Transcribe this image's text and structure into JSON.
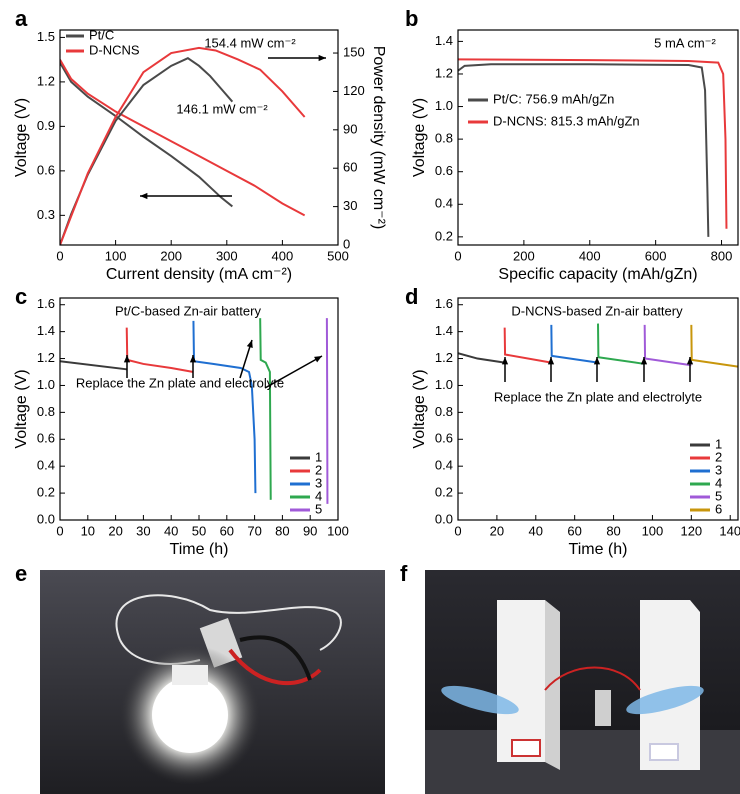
{
  "chart_data": [
    {
      "type": "line",
      "panel_label": "a",
      "xlabel": "Current density (mA cm⁻²)",
      "ylabel": "Voltage (V)",
      "y2label": "Power density (mW cm⁻²)",
      "xlim": [
        0,
        500
      ],
      "xticks": [
        0,
        100,
        200,
        300,
        400,
        500
      ],
      "ylim": [
        0.1,
        1.55
      ],
      "yticks": [
        0.3,
        0.6,
        0.9,
        1.2,
        1.5
      ],
      "y2lim": [
        0,
        168
      ],
      "y2ticks": [
        0,
        30,
        60,
        90,
        120,
        150
      ],
      "legend": "upper left",
      "annotations": [
        {
          "text": "154.4 mW cm⁻²",
          "color": "#e8393b"
        },
        {
          "text": "146.1 mW cm⁻²",
          "color": "#000000"
        }
      ],
      "series": [
        {
          "name": "Pt/C",
          "color": "#4a4a4a",
          "x": [
            0,
            20,
            50,
            100,
            150,
            200,
            250,
            290,
            310
          ],
          "values": [
            1.33,
            1.2,
            1.1,
            0.97,
            0.83,
            0.7,
            0.56,
            0.42,
            0.36
          ]
        },
        {
          "name": "D-NCNS",
          "color": "#e8393b",
          "x": [
            0,
            20,
            50,
            100,
            150,
            200,
            250,
            300,
            350,
            400,
            440
          ],
          "values": [
            1.35,
            1.22,
            1.12,
            1.0,
            0.9,
            0.8,
            0.7,
            0.6,
            0.5,
            0.38,
            0.3
          ]
        },
        {
          "color": "#4a4a4a",
          "axis": "y2",
          "x": [
            0,
            20,
            50,
            100,
            150,
            200,
            230,
            250,
            270,
            290,
            310
          ],
          "values": [
            0,
            24,
            55,
            97,
            125,
            140,
            146,
            140,
            132,
            122,
            112
          ]
        },
        {
          "color": "#e8393b",
          "axis": "y2",
          "x": [
            0,
            50,
            100,
            150,
            200,
            250,
            280,
            320,
            360,
            400,
            440
          ],
          "values": [
            0,
            56,
            100,
            135,
            150,
            154,
            152,
            145,
            137,
            120,
            100
          ]
        }
      ]
    },
    {
      "type": "line",
      "panel_label": "b",
      "xlabel": "Specific capacity (mAh/gZn)",
      "ylabel": "Voltage (V)",
      "xlim": [
        0,
        850
      ],
      "xticks": [
        0,
        200,
        400,
        600,
        800
      ],
      "ylim": [
        0.15,
        1.47
      ],
      "yticks": [
        0.2,
        0.4,
        0.6,
        0.8,
        {
          "value": 1,
          "label": "1.0"
        },
        1.2,
        1.4
      ],
      "legend": "center left",
      "annotations": [
        {
          "text": "5 mA cm⁻²",
          "color": "#000000"
        }
      ],
      "series": [
        {
          "name": "Pt/C: 756.9 mAh/gZn",
          "color": "#4a4a4a",
          "x": [
            0,
            20,
            100,
            400,
            700,
            740,
            750,
            757,
            760
          ],
          "values": [
            1.22,
            1.25,
            1.26,
            1.26,
            1.255,
            1.24,
            1.1,
            0.5,
            0.2
          ]
        },
        {
          "name": "D-NCNS: 815.3 mAh/gZn",
          "color": "#e8393b",
          "x": [
            0,
            400,
            700,
            790,
            805,
            812,
            815
          ],
          "values": [
            1.29,
            1.285,
            1.28,
            1.27,
            1.2,
            0.8,
            0.25
          ]
        }
      ]
    },
    {
      "type": "line",
      "panel_label": "c",
      "xlabel": "Time (h)",
      "ylabel": "Voltage (V)",
      "xlim": [
        0,
        100
      ],
      "xticks": [
        0,
        10,
        20,
        30,
        40,
        50,
        60,
        70,
        80,
        90,
        100
      ],
      "ylim": [
        0,
        1.65
      ],
      "yticks": [
        {
          "value": 0,
          "label": "0.0"
        },
        0.2,
        0.4,
        0.6,
        0.8,
        {
          "value": 1,
          "label": "1.0"
        },
        1.2,
        1.4,
        1.6
      ],
      "legend": "lower right",
      "annotations": [
        {
          "text": "Pt/C-based Zn-air battery",
          "color": "#000000"
        },
        {
          "text": "Replace the Zn plate and electrolyte",
          "color": "#000000"
        }
      ],
      "series": [
        {
          "name": "1",
          "color": "#3a3a3a",
          "x": [
            0,
            24
          ],
          "values": [
            1.18,
            1.12
          ]
        },
        {
          "name": "2",
          "color": "#e8393b",
          "x": [
            24,
            24.2,
            30,
            40,
            48
          ],
          "values": [
            1.43,
            1.19,
            1.16,
            1.13,
            1.1
          ]
        },
        {
          "name": "3",
          "color": "#1f6fd1",
          "x": [
            48,
            48.2,
            55,
            65,
            68,
            69,
            70,
            70.3
          ],
          "values": [
            1.48,
            1.18,
            1.16,
            1.13,
            1.1,
            1.0,
            0.6,
            0.2
          ]
        },
        {
          "name": "4",
          "color": "#2ea84f",
          "x": [
            72,
            72.2,
            74,
            75.5,
            75.8
          ],
          "values": [
            1.5,
            1.19,
            1.17,
            1.1,
            0.15
          ]
        },
        {
          "name": "5",
          "color": "#a05ad8",
          "x": [
            96,
            96.1,
            96.2
          ],
          "values": [
            1.5,
            1.0,
            0.12
          ]
        }
      ]
    },
    {
      "type": "line",
      "panel_label": "d",
      "xlabel": "Time (h)",
      "ylabel": "Voltage (V)",
      "xlim": [
        0,
        144
      ],
      "xticks": [
        0,
        20,
        40,
        60,
        80,
        100,
        120,
        140
      ],
      "ylim": [
        0,
        1.65
      ],
      "yticks": [
        {
          "value": 0,
          "label": "0.0"
        },
        0.2,
        0.4,
        0.6,
        0.8,
        {
          "value": 1,
          "label": "1.0"
        },
        1.2,
        1.4,
        1.6
      ],
      "legend": "lower right",
      "annotations": [
        {
          "text": "D-NCNS-based Zn-air battery",
          "color": "#000000"
        },
        {
          "text": "Replace the Zn plate and electrolyte",
          "color": "#000000"
        }
      ],
      "series": [
        {
          "name": "1",
          "color": "#3a3a3a",
          "x": [
            0,
            10,
            24
          ],
          "values": [
            1.24,
            1.2,
            1.17
          ]
        },
        {
          "name": "2",
          "color": "#e8393b",
          "x": [
            24,
            24.2,
            48
          ],
          "values": [
            1.43,
            1.23,
            1.17
          ]
        },
        {
          "name": "3",
          "color": "#1f6fd1",
          "x": [
            48,
            48.2,
            72
          ],
          "values": [
            1.45,
            1.22,
            1.17
          ]
        },
        {
          "name": "4",
          "color": "#2ea84f",
          "x": [
            72,
            72.2,
            96
          ],
          "values": [
            1.46,
            1.21,
            1.16
          ]
        },
        {
          "name": "5",
          "color": "#a05ad8",
          "x": [
            96,
            96.2,
            120
          ],
          "values": [
            1.45,
            1.2,
            1.15
          ]
        },
        {
          "name": "6",
          "color": "#c8960c",
          "x": [
            120,
            120.2,
            144
          ],
          "values": [
            1.45,
            1.19,
            1.14
          ]
        }
      ]
    }
  ],
  "photos": [
    {
      "label": "e"
    },
    {
      "label": "f"
    }
  ]
}
